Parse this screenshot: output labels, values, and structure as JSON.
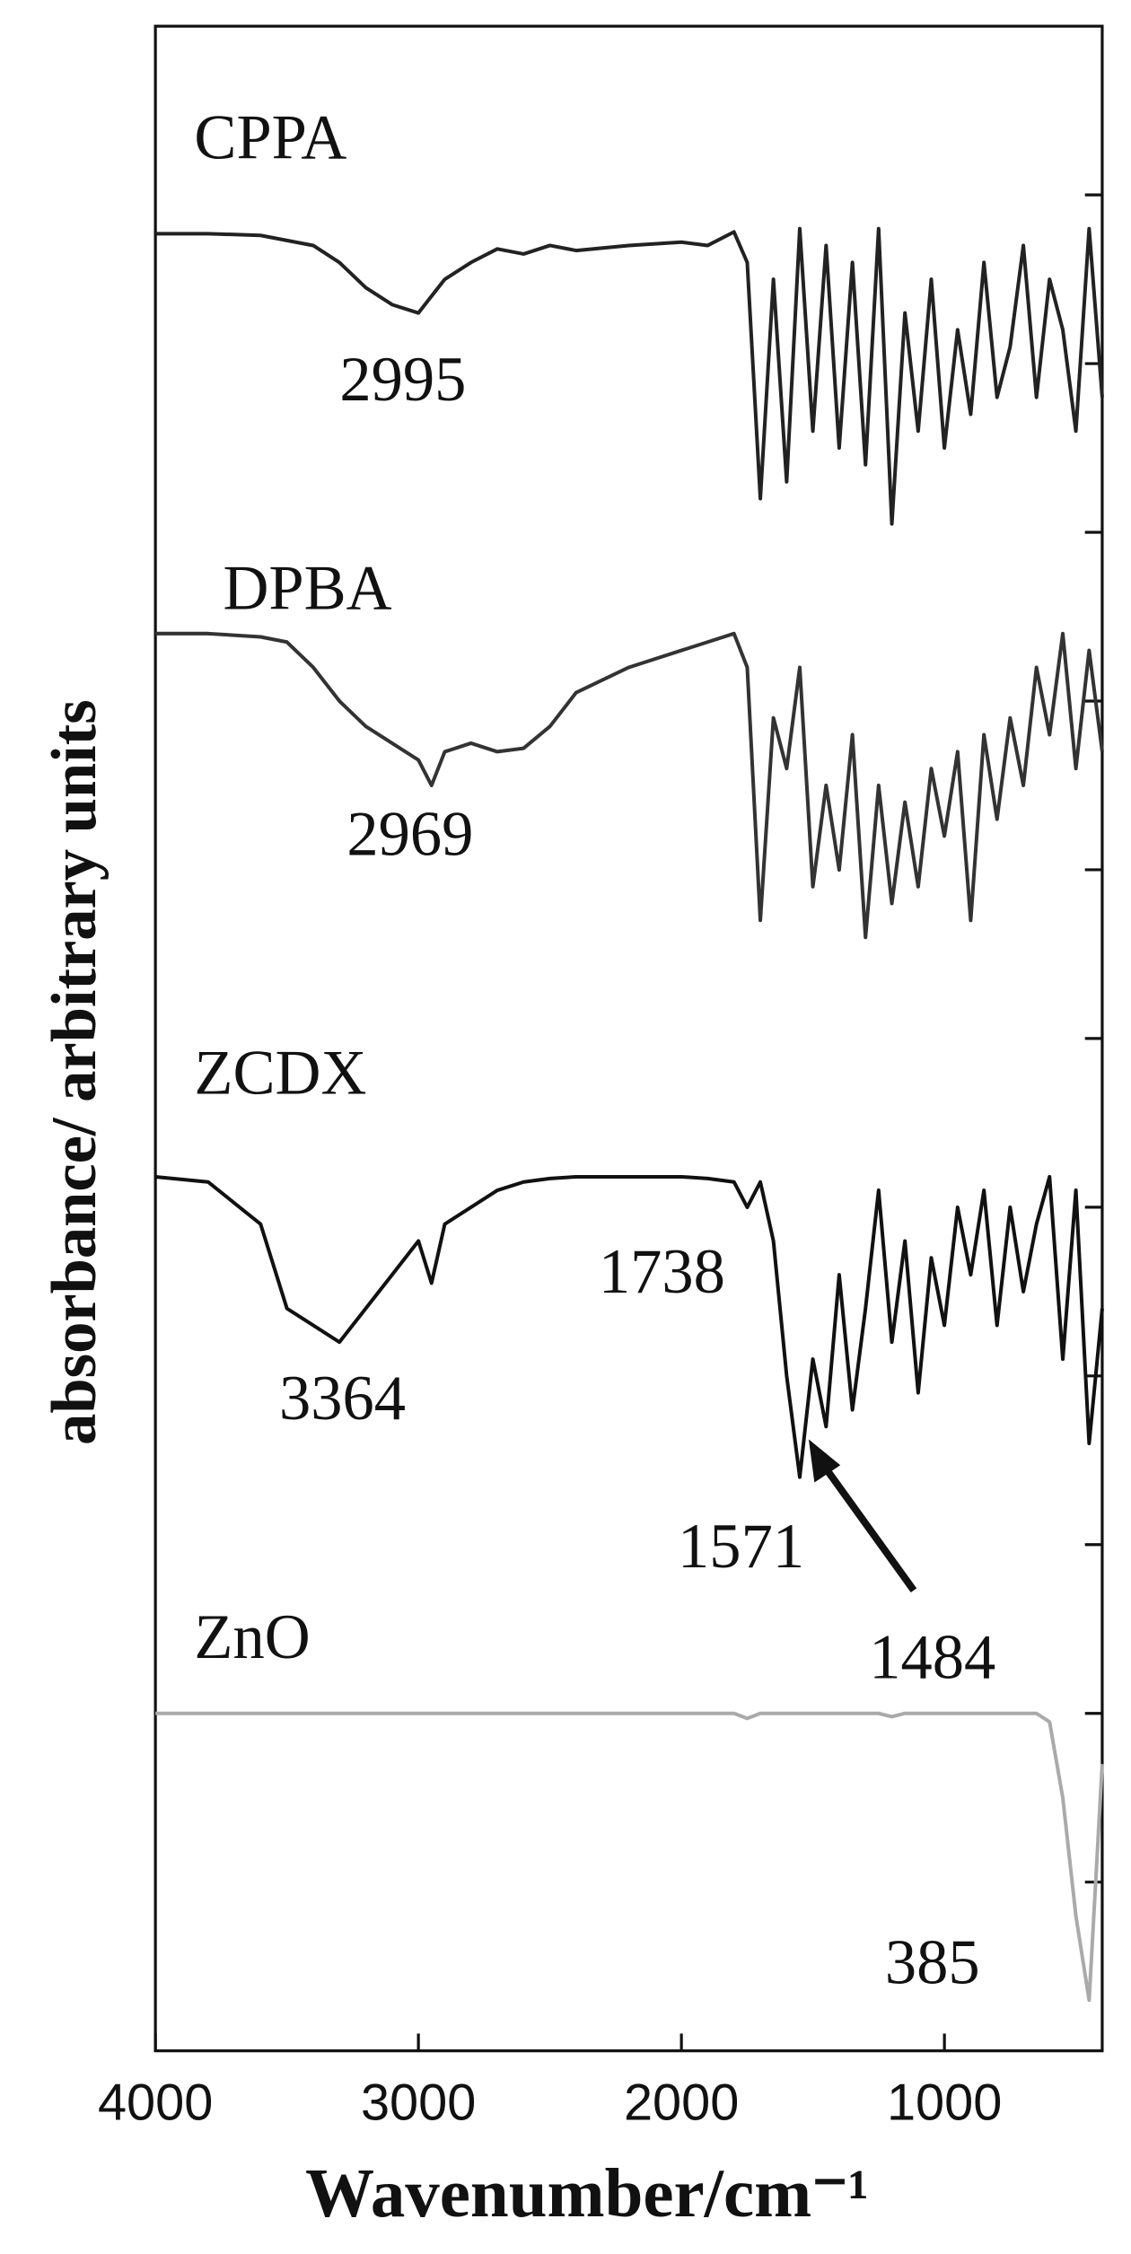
{
  "chart_data": {
    "type": "line",
    "xlabel": "Wavenumber/cm⁻¹",
    "ylabel": "absorbance/ arbitrary units",
    "xlim": [
      4000,
      400
    ],
    "ylim": [
      0,
      12
    ],
    "xticks": [
      4000,
      3000,
      2000,
      1000
    ],
    "yticks": [
      1,
      2,
      3,
      4,
      5,
      6,
      7,
      8,
      9,
      10,
      11
    ],
    "x": [
      4000,
      3800,
      3600,
      3500,
      3400,
      3300,
      3200,
      3100,
      3000,
      2950,
      2900,
      2800,
      2700,
      2600,
      2500,
      2400,
      2200,
      2000,
      1900,
      1800,
      1750,
      1700,
      1650,
      1600,
      1550,
      1500,
      1450,
      1400,
      1350,
      1300,
      1250,
      1200,
      1150,
      1100,
      1050,
      1000,
      950,
      900,
      850,
      800,
      750,
      700,
      650,
      600,
      550,
      500,
      450,
      400
    ],
    "series": [
      {
        "name": "CPPA",
        "color": "#222222",
        "values": [
          10.77,
          10.77,
          10.76,
          10.73,
          10.7,
          10.6,
          10.45,
          10.35,
          10.3,
          10.4,
          10.5,
          10.6,
          10.68,
          10.65,
          10.7,
          10.67,
          10.7,
          10.72,
          10.7,
          10.78,
          10.6,
          9.2,
          10.5,
          9.3,
          10.8,
          9.6,
          10.7,
          9.5,
          10.6,
          9.4,
          10.8,
          9.05,
          10.3,
          9.6,
          10.5,
          9.5,
          10.2,
          9.7,
          10.6,
          9.8,
          10.1,
          10.7,
          9.8,
          10.5,
          10.2,
          9.6,
          10.8,
          9.8
        ]
      },
      {
        "name": "DPBA",
        "color": "#333333",
        "values": [
          8.4,
          8.4,
          8.38,
          8.35,
          8.2,
          8.0,
          7.85,
          7.75,
          7.65,
          7.5,
          7.7,
          7.75,
          7.7,
          7.72,
          7.85,
          8.05,
          8.2,
          8.3,
          8.35,
          8.4,
          8.2,
          6.7,
          7.9,
          7.6,
          8.2,
          6.9,
          7.5,
          7.0,
          7.8,
          6.6,
          7.5,
          6.8,
          7.4,
          6.9,
          7.6,
          7.2,
          7.7,
          6.7,
          7.8,
          7.3,
          7.9,
          7.5,
          8.2,
          7.8,
          8.4,
          7.6,
          8.3,
          7.7
        ]
      },
      {
        "name": "ZCDX",
        "color": "#111111",
        "values": [
          5.18,
          5.15,
          4.9,
          4.4,
          4.3,
          4.2,
          4.4,
          4.6,
          4.8,
          4.55,
          4.9,
          5.0,
          5.1,
          5.15,
          5.17,
          5.18,
          5.18,
          5.18,
          5.17,
          5.15,
          5.0,
          5.15,
          4.8,
          4.0,
          3.4,
          4.1,
          3.7,
          4.6,
          3.8,
          4.4,
          5.1,
          4.2,
          4.8,
          3.9,
          4.7,
          4.3,
          5.0,
          4.6,
          5.1,
          4.3,
          5.0,
          4.5,
          4.9,
          5.18,
          4.1,
          5.1,
          3.6,
          4.4
        ]
      },
      {
        "name": "ZnO",
        "color": "#aaaaaa",
        "values": [
          2.0,
          2.0,
          2.0,
          2.0,
          2.0,
          2.0,
          2.0,
          2.0,
          2.0,
          2.0,
          2.0,
          2.0,
          2.0,
          2.0,
          2.0,
          2.0,
          2.0,
          2.0,
          2.0,
          2.0,
          1.97,
          2.0,
          2.0,
          2.0,
          2.0,
          2.0,
          2.0,
          2.0,
          2.0,
          2.0,
          2.0,
          1.98,
          2.0,
          2.0,
          2.0,
          2.0,
          2.0,
          2.0,
          2.0,
          2.0,
          2.0,
          2.0,
          2.0,
          1.95,
          1.5,
          0.8,
          0.3,
          1.7
        ]
      }
    ],
    "annotations": [
      "2995",
      "2969",
      "3364",
      "1738",
      "1571",
      "1484",
      "385"
    ]
  }
}
